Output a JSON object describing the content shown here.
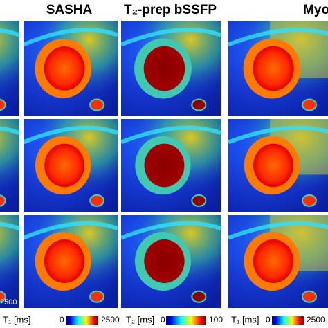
{
  "header": {
    "col1": "SASHA",
    "col2": "T₂-prep bSSFP",
    "col3": "Myo"
  },
  "edge_label": "2500",
  "colorbars": [
    {
      "label": "T₁ [ms]",
      "min": "0",
      "max": "2500"
    },
    {
      "label": "T₂ [ms]",
      "min": "0",
      "max": "100"
    },
    {
      "label": "T₁ [ms]",
      "min": "0",
      "max": "2500"
    }
  ]
}
